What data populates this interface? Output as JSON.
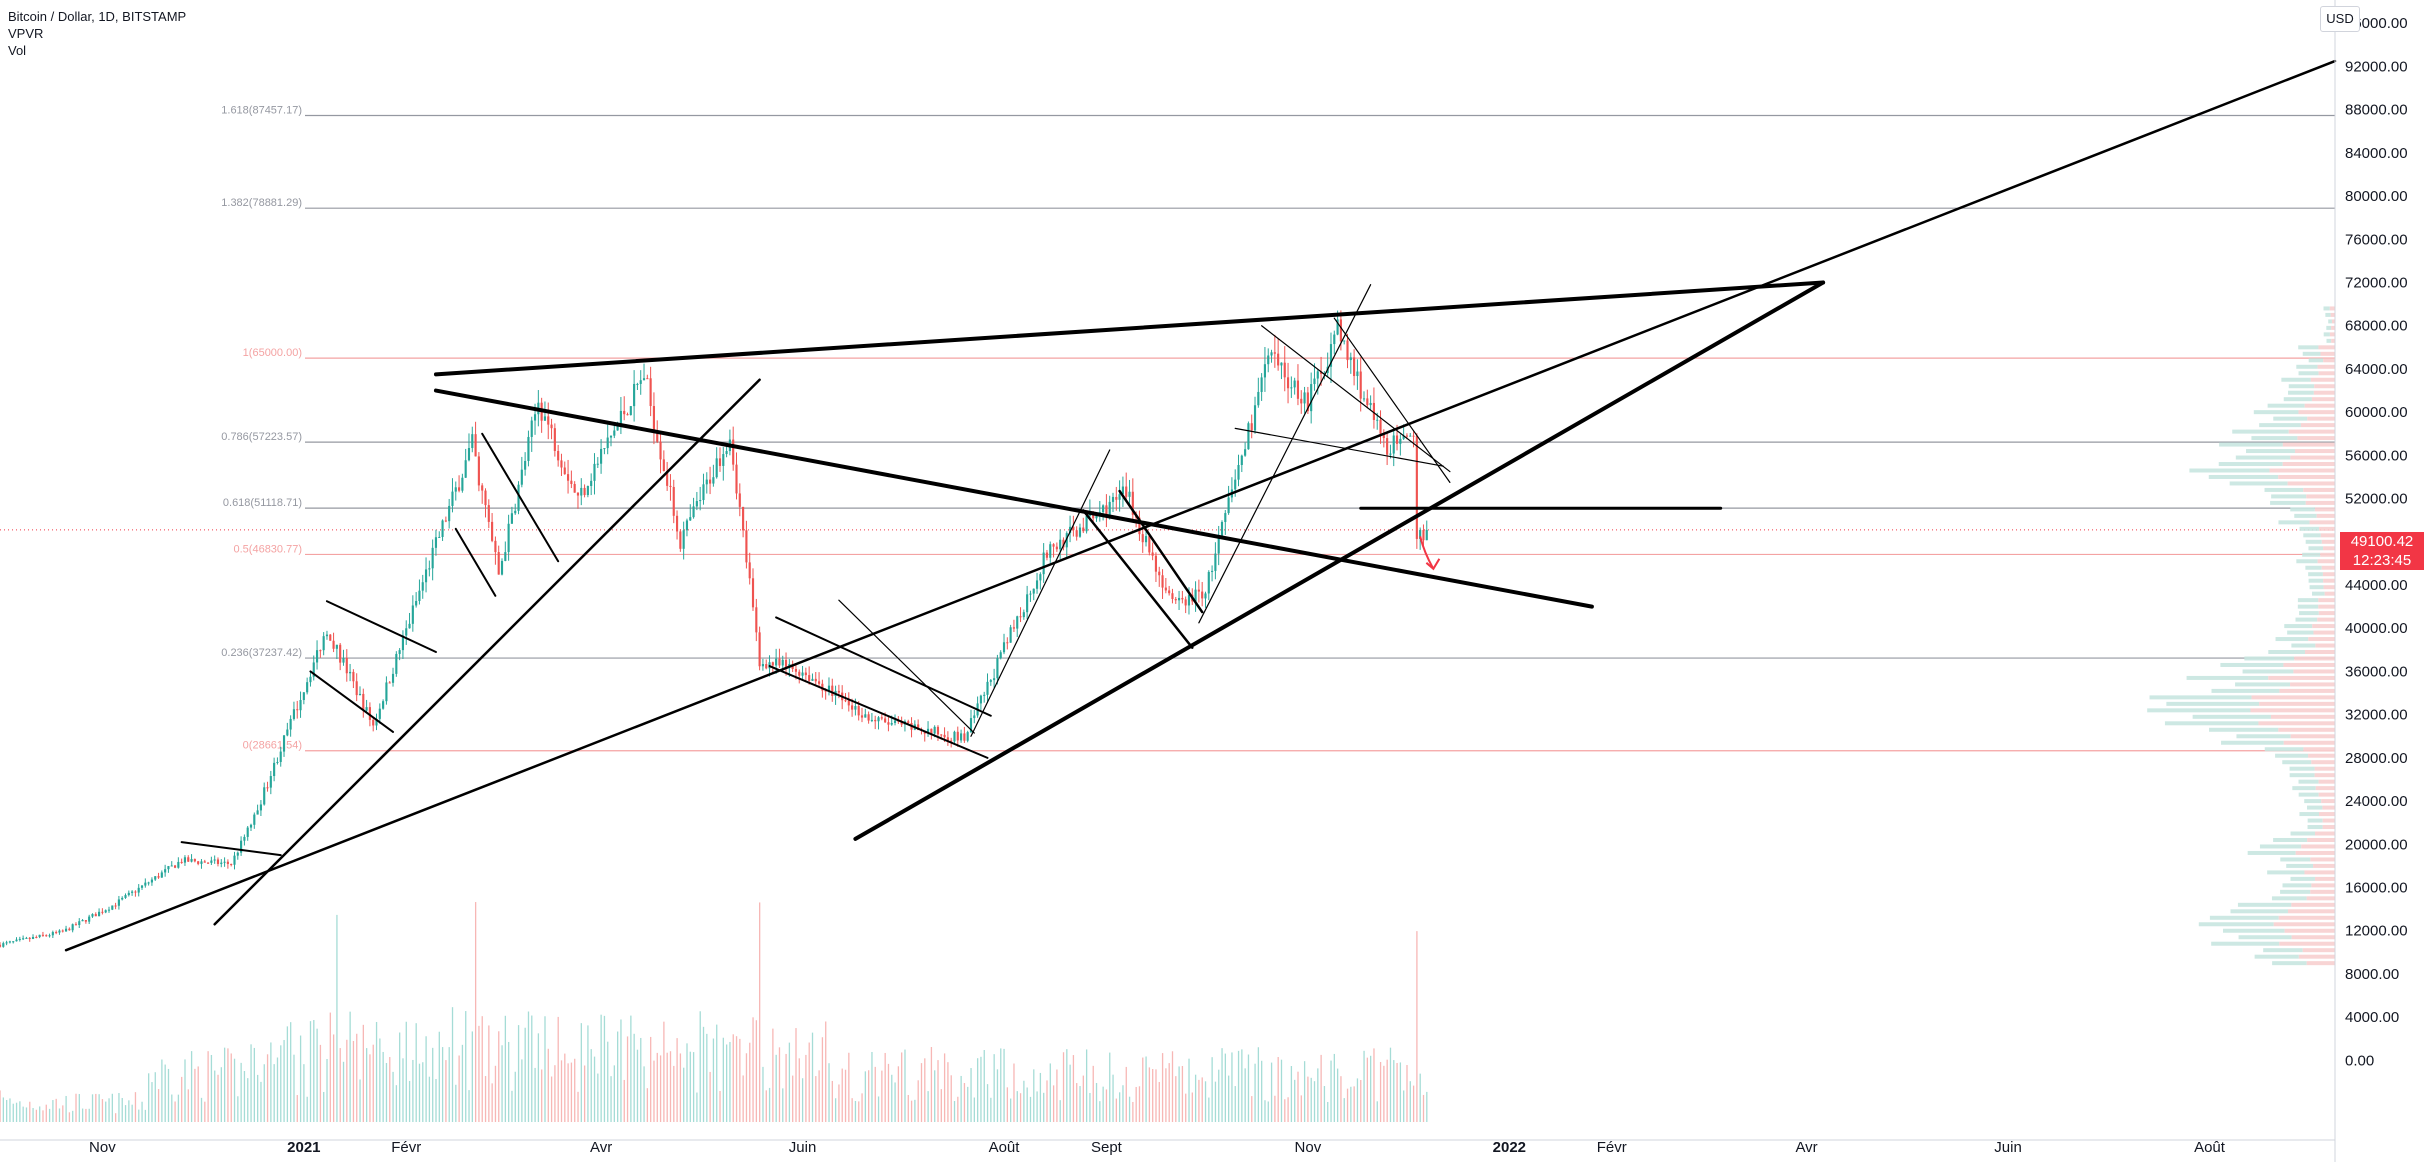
{
  "legend": {
    "symbol": "Bitcoin / Dollar, 1D, BITSTAMP",
    "indicator_vpvr": "VPVR",
    "indicator_vol": "Vol"
  },
  "currency_button": "USD",
  "last_price": {
    "value": "49100.42",
    "countdown": "12:23:45"
  },
  "colors": {
    "up": "#26a69a",
    "down": "#ef5350",
    "fib_red": "#f4a3a3",
    "fib_gray": "#9598a1",
    "grid": "#e9e9ea"
  },
  "chart_data": {
    "type": "candlestick",
    "title": "Bitcoin / Dollar, 1D, BITSTAMP",
    "y_axis": {
      "ylim": [
        -2000,
        100000
      ],
      "tick_labels": [
        "0.00",
        "4000.00",
        "8000.00",
        "12000.00",
        "16000.00",
        "20000.00",
        "24000.00",
        "28000.00",
        "32000.00",
        "36000.00",
        "40000.00",
        "44000.00",
        "48000.00",
        "52000.00",
        "56000.00",
        "60000.00",
        "64000.00",
        "68000.00",
        "72000.00",
        "76000.00",
        "80000.00",
        "84000.00",
        "88000.00",
        "92000.00",
        "96000.00"
      ],
      "tick_values": [
        0,
        4000,
        8000,
        12000,
        16000,
        20000,
        24000,
        28000,
        32000,
        36000,
        40000,
        44000,
        48000,
        52000,
        56000,
        60000,
        64000,
        68000,
        72000,
        76000,
        80000,
        84000,
        88000,
        92000,
        96000
      ]
    },
    "x_axis": {
      "tick_labels": [
        "Nov",
        "2021",
        "Févr",
        "Avr",
        "Juin",
        "Août",
        "Sept",
        "Nov",
        "2022",
        "Févr",
        "Avr",
        "Juin",
        "Août"
      ],
      "tick_dates": [
        "2020-11-01",
        "2021-01-01",
        "2021-02-01",
        "2021-04-01",
        "2021-06-01",
        "2021-08-01",
        "2021-09-01",
        "2021-11-01",
        "2022-01-01",
        "2022-02-01",
        "2022-04-01",
        "2022-06-01",
        "2022-08-01"
      ],
      "range": [
        "2020-10-01",
        "2022-09-08"
      ]
    },
    "fib_levels": [
      {
        "label": "1.618(87457.17)",
        "value": 87457.17,
        "color": "gray"
      },
      {
        "label": "1.382(78881.29)",
        "value": 78881.29,
        "color": "gray"
      },
      {
        "label": "1(65000.00)",
        "value": 65000,
        "color": "red"
      },
      {
        "label": "0.786(57223.57)",
        "value": 57223.57,
        "color": "gray"
      },
      {
        "label": "0.618(51118.71)",
        "value": 51118.71,
        "color": "gray"
      },
      {
        "label": "0.5(46830.77)",
        "value": 46830.77,
        "color": "red"
      },
      {
        "label": "0.236(37237.42)",
        "value": 37237.42,
        "color": "gray"
      },
      {
        "label": "0(28661.54)",
        "value": 28661.54,
        "color": "red"
      }
    ],
    "price_keyframes": [
      [
        "2020-10-01",
        10700
      ],
      [
        "2020-10-20",
        11900
      ],
      [
        "2020-11-05",
        14500
      ],
      [
        "2020-11-25",
        18500
      ],
      [
        "2020-12-10",
        18200
      ],
      [
        "2020-12-17",
        22500
      ],
      [
        "2021-01-08",
        40000
      ],
      [
        "2021-01-22",
        31000
      ],
      [
        "2021-02-08",
        46000
      ],
      [
        "2021-02-21",
        57000
      ],
      [
        "2021-03-01",
        45000
      ],
      [
        "2021-03-13",
        61000
      ],
      [
        "2021-03-25",
        52000
      ],
      [
        "2021-04-14",
        63500
      ],
      [
        "2021-04-25",
        48000
      ],
      [
        "2021-05-10",
        58000
      ],
      [
        "2021-05-19",
        37000
      ],
      [
        "2021-06-01",
        36000
      ],
      [
        "2021-06-22",
        31500
      ],
      [
        "2021-07-20",
        29800
      ],
      [
        "2021-08-14",
        47000
      ],
      [
        "2021-09-07",
        52500
      ],
      [
        "2021-09-21",
        42000
      ],
      [
        "2021-10-01",
        43500
      ],
      [
        "2021-10-20",
        65000
      ],
      [
        "2021-11-01",
        61000
      ],
      [
        "2021-11-10",
        67500
      ],
      [
        "2021-11-24",
        57000
      ],
      [
        "2021-12-03",
        57000
      ],
      [
        "2021-12-04",
        48000
      ],
      [
        "2021-12-07",
        49100
      ]
    ],
    "volume_spike_dates": [
      "2021-01-11",
      "2021-02-22",
      "2021-05-19",
      "2021-12-04"
    ],
    "trendlines": [
      {
        "from": [
          "2021-02-10",
          62000
        ],
        "to": [
          "2022-01-26",
          42000
        ],
        "w": 4
      },
      {
        "from": [
          "2021-02-10",
          63500
        ],
        "to": [
          "2022-04-06",
          72000
        ],
        "w": 4
      },
      {
        "from": [
          "2021-06-17",
          20500
        ],
        "to": [
          "2022-04-06",
          72000
        ],
        "w": 4
      },
      {
        "from": [
          "2020-10-21",
          10200
        ],
        "to": [
          "2022-09-08",
          92500
        ],
        "w": 2.5
      },
      {
        "from": [
          "2020-12-05",
          12600
        ],
        "to": [
          "2021-05-19",
          63000
        ],
        "w": 2.5
      },
      {
        "from": [
          "2021-11-17",
          51100
        ],
        "to": [
          "2022-03-06",
          51100
        ],
        "w": 3
      },
      {
        "from": [
          "2020-11-25",
          20200
        ],
        "to": [
          "2020-12-25",
          19000
        ],
        "w": 2
      },
      {
        "from": [
          "2021-01-08",
          42500
        ],
        "to": [
          "2021-02-10",
          37800
        ],
        "w": 2
      },
      {
        "from": [
          "2021-01-03",
          36000
        ],
        "to": [
          "2021-01-28",
          30400
        ],
        "w": 2
      },
      {
        "from": [
          "2021-02-16",
          49200
        ],
        "to": [
          "2021-02-28",
          43000
        ],
        "w": 2
      },
      {
        "from": [
          "2021-02-24",
          58000
        ],
        "to": [
          "2021-03-19",
          46200
        ],
        "w": 2
      },
      {
        "from": [
          "2021-05-24",
          41000
        ],
        "to": [
          "2021-07-28",
          31900
        ],
        "w": 2
      },
      {
        "from": [
          "2021-05-22",
          36500
        ],
        "to": [
          "2021-07-27",
          28000
        ],
        "w": 2
      },
      {
        "from": [
          "2021-06-12",
          42600
        ],
        "to": [
          "2021-07-23",
          30300
        ],
        "w": 1.2
      },
      {
        "from": [
          "2021-08-25",
          50900
        ],
        "to": [
          "2021-09-27",
          38200
        ],
        "w": 2.5
      },
      {
        "from": [
          "2021-09-05",
          52700
        ],
        "to": [
          "2021-09-30",
          41500
        ],
        "w": 2.5
      },
      {
        "from": [
          "2021-10-10",
          58500
        ],
        "to": [
          "2021-12-12",
          55000
        ],
        "w": 1.2
      },
      {
        "from": [
          "2021-10-18",
          68000
        ],
        "to": [
          "2021-12-14",
          54500
        ],
        "w": 1.2
      },
      {
        "from": [
          "2021-11-09",
          68700
        ],
        "to": [
          "2021-12-14",
          53500
        ],
        "w": 1.2
      },
      {
        "from": [
          "2021-07-22",
          30000
        ],
        "to": [
          "2021-09-02",
          56500
        ],
        "w": 1.2
      },
      {
        "from": [
          "2021-09-29",
          40500
        ],
        "to": [
          "2021-11-20",
          71800
        ],
        "w": 1.2
      }
    ],
    "arrow": {
      "from": [
        "2021-12-05",
        48500
      ],
      "to": [
        "2021-12-09",
        45500
      ]
    }
  }
}
